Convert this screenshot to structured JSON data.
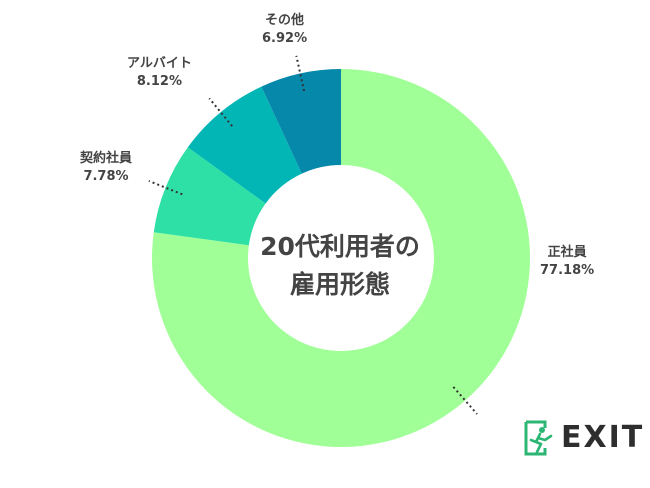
{
  "chart_data": {
    "type": "pie",
    "title": "20代利用者の雇用形態",
    "title_lines": [
      "20代利用者の",
      "雇用形態"
    ],
    "donut": true,
    "slices": [
      {
        "label": "正社員",
        "value": 77.18,
        "value_label": "77.18%",
        "color": "#a0ff96"
      },
      {
        "label": "契約社員",
        "value": 7.78,
        "value_label": "7.78%",
        "color": "#2ee0a6"
      },
      {
        "label": "アルバイト",
        "value": 8.12,
        "value_label": "8.12%",
        "color": "#03b6b6"
      },
      {
        "label": "その他",
        "value": 6.92,
        "value_label": "6.92%",
        "color": "#0588aa"
      }
    ]
  },
  "logo": {
    "text": "EXIT",
    "icon": "running-exit-icon",
    "accent": "#2bb673"
  }
}
